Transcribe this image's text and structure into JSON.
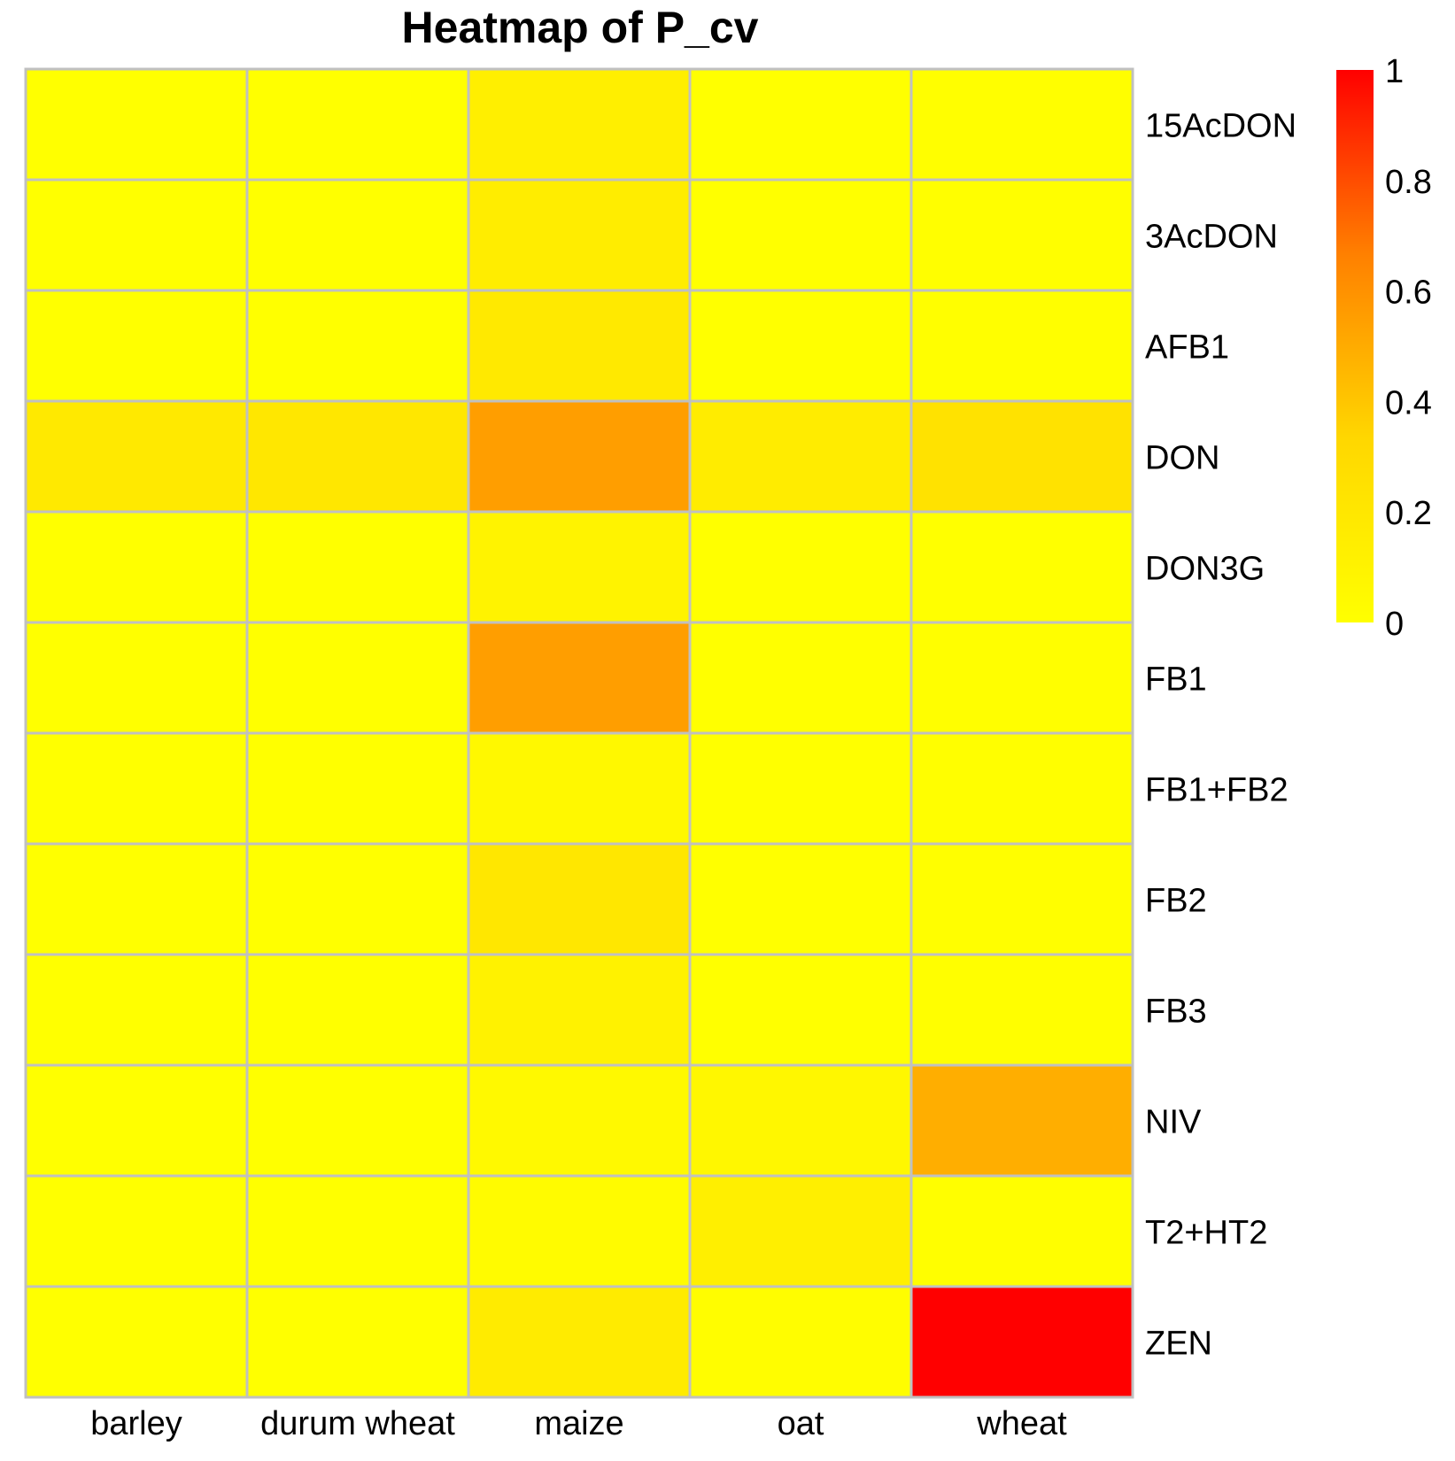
{
  "chart_data": {
    "type": "heatmap",
    "title": "Heatmap  of  P_cv",
    "columns": [
      "barley",
      "durum wheat",
      "maize",
      "oat",
      "wheat"
    ],
    "rows": [
      "15AcDON",
      "3AcDON",
      "AFB1",
      "DON",
      "DON3G",
      "FB1",
      "FB1+FB2",
      "FB2",
      "FB3",
      "NIV",
      "T2+HT2",
      "ZEN"
    ],
    "values": [
      [
        0.0,
        0.0,
        0.13,
        0.0,
        0.01
      ],
      [
        0.0,
        0.0,
        0.15,
        0.0,
        0.01
      ],
      [
        0.0,
        0.0,
        0.18,
        0.0,
        0.01
      ],
      [
        0.18,
        0.2,
        0.55,
        0.16,
        0.24
      ],
      [
        0.0,
        0.0,
        0.1,
        0.0,
        0.0
      ],
      [
        0.0,
        0.0,
        0.55,
        0.0,
        0.01
      ],
      [
        0.0,
        0.0,
        0.06,
        0.0,
        0.01
      ],
      [
        0.0,
        0.0,
        0.2,
        0.0,
        0.01
      ],
      [
        0.0,
        0.0,
        0.11,
        0.0,
        0.01
      ],
      [
        0.0,
        0.0,
        0.05,
        0.07,
        0.49
      ],
      [
        0.0,
        0.0,
        0.03,
        0.13,
        0.01
      ],
      [
        0.0,
        0.0,
        0.17,
        0.02,
        1.0
      ]
    ],
    "colorscale": {
      "min": 0,
      "max": 1,
      "colors": [
        "#ffff00",
        "#ffd700",
        "#ff8000",
        "#ff0000"
      ]
    },
    "legend": {
      "ticks": [
        "0",
        "0.2",
        "0.4",
        "0.6",
        "0.8",
        "1"
      ]
    },
    "grid": true,
    "border_color": "#c0c0c0"
  }
}
